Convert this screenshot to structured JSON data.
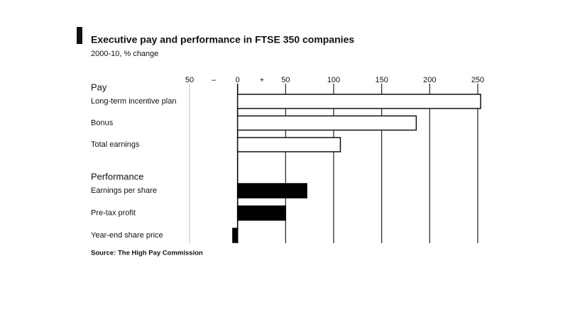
{
  "chart_data": {
    "type": "bar",
    "orientation": "horizontal",
    "title": "Executive pay and performance in FTSE 350 companies",
    "subtitle": "2000-10, % change",
    "source": "Source: The High Pay Commission",
    "minus_sign": "–",
    "plus_sign": "+",
    "groups": [
      {
        "name": "Pay",
        "color": "#ffffff",
        "outline": "#111111",
        "categories": [
          "Long-term incentive plan",
          "Bonus",
          "Total earnings"
        ],
        "values": [
          253,
          186,
          107
        ]
      },
      {
        "name": "Performance",
        "color": "#000000",
        "outline": "#000000",
        "categories": [
          "Earnings per share",
          "Pre-tax profit",
          "Year-end share price"
        ],
        "values": [
          72,
          50,
          -5
        ]
      }
    ],
    "xlim": [
      -50,
      250
    ],
    "xticks": [
      {
        "value": -50,
        "label": "50"
      },
      0,
      50,
      100,
      150,
      200,
      250
    ],
    "grid": true
  }
}
